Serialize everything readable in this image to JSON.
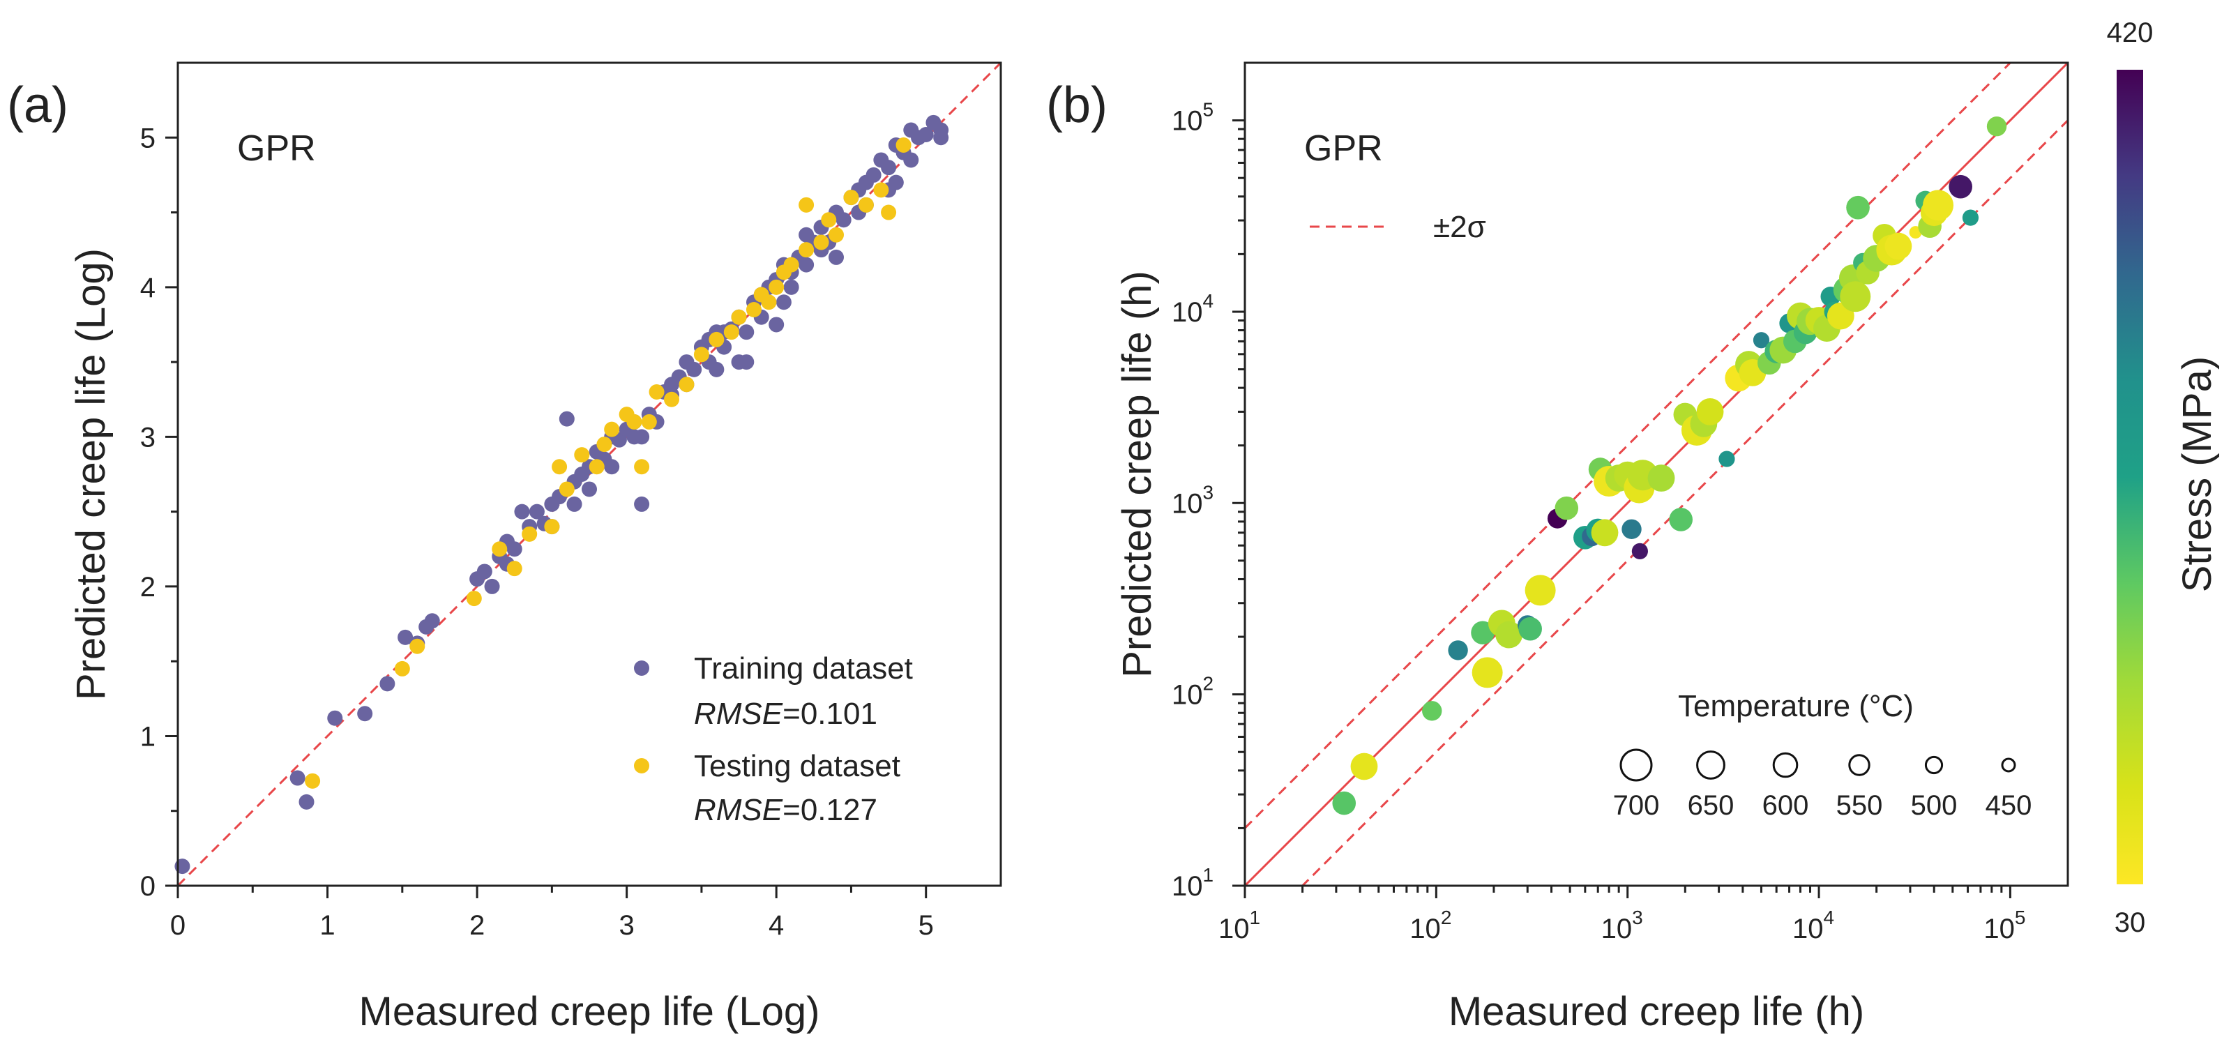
{
  "chart_data": [
    {
      "panel_label": "(a)",
      "type": "scatter",
      "method_label": "GPR",
      "xlabel": "Measured creep life (Log)",
      "ylabel": "Predicted creep life (Log)",
      "xlim": [
        0,
        5.5
      ],
      "ylim": [
        0,
        5.5
      ],
      "xticks": [
        "0",
        "1",
        "2",
        "3",
        "4",
        "5"
      ],
      "yticks": [
        "0",
        "1",
        "2",
        "3",
        "4",
        "5"
      ],
      "reference_line": "y = x (dashed red)",
      "legend": {
        "position": "bottom-right",
        "entries": [
          {
            "label": "Training dataset",
            "metric_prefix": "RMSE",
            "metric_value": "=0.101",
            "color": "#6a64a0"
          },
          {
            "label": "Testing dataset",
            "metric_prefix": "RMSE",
            "metric_value": "=0.127",
            "color": "#f5c518"
          }
        ]
      },
      "series": [
        {
          "name": "Training dataset",
          "color": "#6a64a0",
          "points": [
            [
              0.03,
              0.13
            ],
            [
              0.8,
              0.72
            ],
            [
              0.86,
              0.56
            ],
            [
              1.05,
              1.12
            ],
            [
              1.25,
              1.15
            ],
            [
              1.4,
              1.35
            ],
            [
              1.52,
              1.66
            ],
            [
              1.6,
              1.62
            ],
            [
              1.66,
              1.73
            ],
            [
              1.7,
              1.77
            ],
            [
              2.0,
              2.05
            ],
            [
              2.05,
              2.1
            ],
            [
              2.1,
              2.0
            ],
            [
              2.15,
              2.2
            ],
            [
              2.2,
              2.3
            ],
            [
              2.25,
              2.25
            ],
            [
              2.3,
              2.5
            ],
            [
              2.35,
              2.4
            ],
            [
              2.4,
              2.5
            ],
            [
              2.45,
              2.42
            ],
            [
              2.5,
              2.55
            ],
            [
              2.55,
              2.6
            ],
            [
              2.6,
              3.12
            ],
            [
              2.65,
              2.7
            ],
            [
              2.7,
              2.75
            ],
            [
              2.75,
              2.8
            ],
            [
              2.8,
              2.9
            ],
            [
              2.85,
              2.85
            ],
            [
              2.9,
              3.0
            ],
            [
              2.95,
              2.98
            ],
            [
              3.0,
              3.05
            ],
            [
              3.05,
              3.1
            ],
            [
              3.1,
              3.0
            ],
            [
              3.15,
              3.15
            ],
            [
              3.2,
              3.1
            ],
            [
              3.25,
              3.3
            ],
            [
              3.3,
              3.28
            ],
            [
              3.35,
              3.4
            ],
            [
              3.4,
              3.5
            ],
            [
              3.45,
              3.45
            ],
            [
              3.5,
              3.6
            ],
            [
              3.55,
              3.5
            ],
            [
              3.6,
              3.7
            ],
            [
              3.65,
              3.6
            ],
            [
              3.7,
              3.72
            ],
            [
              3.75,
              3.8
            ],
            [
              3.8,
              3.7
            ],
            [
              3.85,
              3.9
            ],
            [
              3.9,
              3.95
            ],
            [
              3.95,
              4.0
            ],
            [
              4.0,
              4.05
            ],
            [
              4.05,
              3.9
            ],
            [
              4.1,
              4.1
            ],
            [
              4.15,
              4.2
            ],
            [
              4.2,
              4.15
            ],
            [
              4.25,
              4.3
            ],
            [
              4.3,
              4.4
            ],
            [
              4.35,
              4.3
            ],
            [
              4.4,
              4.5
            ],
            [
              4.45,
              4.45
            ],
            [
              4.5,
              4.6
            ],
            [
              4.55,
              4.5
            ],
            [
              4.6,
              4.7
            ],
            [
              4.65,
              4.75
            ],
            [
              4.7,
              4.85
            ],
            [
              4.75,
              4.8
            ],
            [
              4.8,
              4.95
            ],
            [
              4.85,
              4.9
            ],
            [
              4.9,
              5.05
            ],
            [
              4.95,
              5.0
            ],
            [
              5.0,
              5.02
            ],
            [
              5.05,
              5.1
            ],
            [
              5.1,
              5.05
            ],
            [
              4.6,
              4.55
            ],
            [
              4.2,
              4.35
            ],
            [
              3.9,
              3.8
            ],
            [
              3.6,
              3.45
            ],
            [
              3.3,
              3.35
            ],
            [
              3.1,
              2.55
            ],
            [
              2.75,
              2.65
            ],
            [
              2.5,
              2.4
            ],
            [
              3.8,
              3.5
            ],
            [
              4.0,
              3.75
            ],
            [
              3.75,
              3.5
            ],
            [
              4.4,
              4.2
            ],
            [
              4.75,
              4.65
            ],
            [
              4.9,
              4.85
            ],
            [
              2.9,
              2.8
            ],
            [
              3.4,
              3.35
            ],
            [
              4.05,
              4.15
            ],
            [
              4.3,
              4.25
            ],
            [
              3.65,
              3.7
            ],
            [
              2.2,
              2.15
            ],
            [
              2.65,
              2.55
            ],
            [
              4.55,
              4.65
            ],
            [
              4.8,
              4.7
            ],
            [
              5.1,
              5.0
            ],
            [
              3.05,
              3.0
            ],
            [
              3.55,
              3.65
            ],
            [
              4.1,
              4.0
            ]
          ]
        },
        {
          "name": "Testing dataset",
          "color": "#f5c518",
          "points": [
            [
              0.9,
              0.7
            ],
            [
              1.5,
              1.45
            ],
            [
              1.6,
              1.6
            ],
            [
              1.98,
              1.92
            ],
            [
              2.15,
              2.25
            ],
            [
              2.25,
              2.12
            ],
            [
              2.35,
              2.35
            ],
            [
              2.5,
              2.4
            ],
            [
              2.6,
              2.65
            ],
            [
              2.7,
              2.88
            ],
            [
              2.8,
              2.8
            ],
            [
              2.85,
              2.95
            ],
            [
              2.9,
              3.05
            ],
            [
              3.0,
              3.15
            ],
            [
              3.05,
              3.1
            ],
            [
              3.1,
              2.8
            ],
            [
              3.2,
              3.3
            ],
            [
              3.3,
              3.25
            ],
            [
              3.4,
              3.35
            ],
            [
              3.5,
              3.55
            ],
            [
              3.6,
              3.65
            ],
            [
              3.7,
              3.7
            ],
            [
              3.75,
              3.8
            ],
            [
              3.85,
              3.85
            ],
            [
              3.9,
              3.95
            ],
            [
              4.0,
              4.0
            ],
            [
              4.05,
              4.1
            ],
            [
              4.1,
              4.15
            ],
            [
              4.2,
              4.25
            ],
            [
              4.2,
              4.55
            ],
            [
              4.3,
              4.3
            ],
            [
              4.4,
              4.35
            ],
            [
              4.5,
              4.6
            ],
            [
              4.6,
              4.55
            ],
            [
              4.7,
              4.65
            ],
            [
              4.75,
              4.5
            ],
            [
              4.85,
              4.95
            ],
            [
              2.55,
              2.8
            ],
            [
              3.15,
              3.1
            ],
            [
              3.95,
              3.9
            ],
            [
              4.35,
              4.45
            ]
          ]
        }
      ]
    },
    {
      "panel_label": "(b)",
      "type": "scatter",
      "method_label": "GPR",
      "xscale": "log",
      "yscale": "log",
      "xlabel": "Measured creep life (h)",
      "ylabel": "Predicted creep life (h)",
      "xlim": [
        10,
        200000
      ],
      "ylim": [
        10,
        200000
      ],
      "ticks": [
        {
          "base": "10",
          "exp": "1"
        },
        {
          "base": "10",
          "exp": "2"
        },
        {
          "base": "10",
          "exp": "3"
        },
        {
          "base": "10",
          "exp": "4"
        },
        {
          "base": "10",
          "exp": "5"
        }
      ],
      "reference_lines": [
        "y = x (solid red)",
        "y = 2x (dashed red)",
        "y = x/2 (dashed red)"
      ],
      "band_legend": {
        "label": "±2σ",
        "position": "top-left"
      },
      "size_legend": {
        "title": "Temperature (°C)",
        "position": "bottom-right",
        "entries": [
          {
            "label": "700",
            "temp": 700
          },
          {
            "label": "650",
            "temp": 650
          },
          {
            "label": "600",
            "temp": 600
          },
          {
            "label": "550",
            "temp": 550
          },
          {
            "label": "500",
            "temp": 500
          },
          {
            "label": "450",
            "temp": 450
          }
        ]
      },
      "colorbar": {
        "label": "Stress (MPa)",
        "min_label": "30",
        "max_label": "420",
        "min": 30,
        "max": 420,
        "colormap": "viridis (reversed: yellow = low, purple = high)"
      },
      "points_fields": [
        "measured_h",
        "predicted_h",
        "stress_MPa",
        "temperature_C"
      ],
      "points": [
        [
          33,
          27,
          180,
          600
        ],
        [
          42,
          42,
          60,
          650
        ],
        [
          95,
          82,
          170,
          550
        ],
        [
          130,
          170,
          290,
          550
        ],
        [
          175,
          210,
          180,
          600
        ],
        [
          185,
          130,
          60,
          700
        ],
        [
          220,
          235,
          100,
          650
        ],
        [
          240,
          205,
          110,
          650
        ],
        [
          300,
          230,
          300,
          550
        ],
        [
          310,
          220,
          190,
          600
        ],
        [
          350,
          350,
          60,
          700
        ],
        [
          430,
          830,
          420,
          550
        ],
        [
          480,
          940,
          150,
          600
        ],
        [
          600,
          660,
          230,
          600
        ],
        [
          650,
          670,
          320,
          550
        ],
        [
          700,
          720,
          230,
          600
        ],
        [
          720,
          1500,
          160,
          600
        ],
        [
          760,
          700,
          90,
          650
        ],
        [
          800,
          1300,
          50,
          700
        ],
        [
          900,
          1350,
          110,
          650
        ],
        [
          1000,
          1400,
          100,
          650
        ],
        [
          1050,
          730,
          300,
          550
        ],
        [
          1150,
          1200,
          60,
          700
        ],
        [
          1160,
          560,
          400,
          500
        ],
        [
          1200,
          1400,
          100,
          700
        ],
        [
          1500,
          1350,
          120,
          650
        ],
        [
          1900,
          820,
          180,
          600
        ],
        [
          2000,
          2900,
          110,
          600
        ],
        [
          2300,
          2400,
          60,
          700
        ],
        [
          2500,
          2600,
          110,
          650
        ],
        [
          2700,
          3000,
          80,
          650
        ],
        [
          3300,
          1700,
          260,
          500
        ],
        [
          3800,
          4500,
          40,
          650
        ],
        [
          4200,
          5200,
          280,
          550
        ],
        [
          4300,
          5300,
          110,
          650
        ],
        [
          4500,
          4800,
          60,
          650
        ],
        [
          5000,
          7100,
          290,
          500
        ],
        [
          5500,
          5400,
          150,
          600
        ],
        [
          6000,
          6200,
          200,
          600
        ],
        [
          6500,
          6300,
          130,
          650
        ],
        [
          7000,
          8700,
          260,
          550
        ],
        [
          7500,
          7000,
          180,
          600
        ],
        [
          8000,
          9500,
          100,
          650
        ],
        [
          8500,
          7800,
          200,
          600
        ],
        [
          9000,
          8900,
          130,
          650
        ],
        [
          10000,
          9000,
          90,
          650
        ],
        [
          11000,
          8200,
          110,
          650
        ],
        [
          11500,
          12000,
          240,
          550
        ],
        [
          12000,
          10000,
          220,
          550
        ],
        [
          13000,
          9500,
          60,
          650
        ],
        [
          14000,
          13000,
          170,
          650
        ],
        [
          15000,
          15000,
          120,
          650
        ],
        [
          15500,
          12000,
          100,
          700
        ],
        [
          16000,
          35000,
          170,
          600
        ],
        [
          17000,
          18000,
          200,
          550
        ],
        [
          18000,
          16000,
          110,
          600
        ],
        [
          20000,
          19000,
          130,
          650
        ],
        [
          22000,
          25000,
          90,
          600
        ],
        [
          24000,
          21000,
          60,
          700
        ],
        [
          26000,
          22000,
          50,
          650
        ],
        [
          32000,
          26000,
          40,
          450
        ],
        [
          36000,
          38000,
          200,
          550
        ],
        [
          38000,
          28000,
          120,
          600
        ],
        [
          40000,
          33000,
          60,
          650
        ],
        [
          42000,
          36000,
          50,
          700
        ],
        [
          55000,
          45000,
          400,
          600
        ],
        [
          62000,
          31000,
          240,
          500
        ],
        [
          85000,
          93000,
          150,
          550
        ]
      ]
    }
  ]
}
